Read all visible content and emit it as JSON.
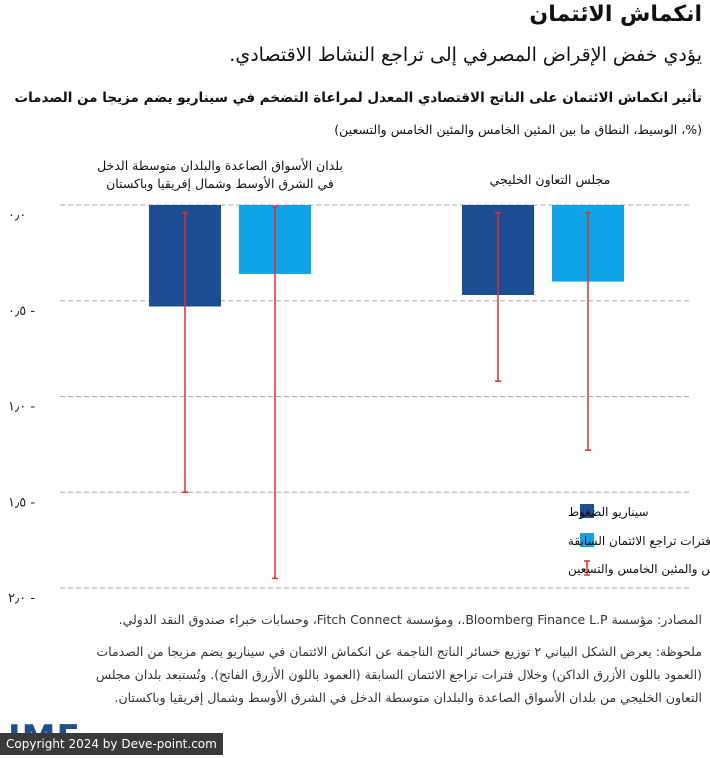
{
  "header": {
    "title": "انكماش الائتمان",
    "subtitle": "يؤدي خفض الإقراض المصرفي إلى تراجع النشاط الاقتصادي."
  },
  "chart_data": {
    "type": "bar",
    "title": "تأثير انكماش الائتمان على الناتج الاقتصادي المعدل لمراعاة التضخم في سيناريو يضم مزيجا من الصدمات",
    "subtitle": "(%، الوسيط، النطاق ما بين المئين الخامس والمئين الخامس والتسعين)",
    "categories": [
      "بلدان الأسواق الصاعدة والبلدان متوسطة الدخل في الشرق الأوسط وشمال إفريقيا وباكستان",
      "مجلس التعاون الخليجي"
    ],
    "series": [
      {
        "name": "سيناريو الضغوط",
        "color": "#1d4e94",
        "values": [
          -0.53,
          -0.47
        ]
      },
      {
        "name": "فترات تراجع الائتمان السابقة",
        "color": "#0fa4e8",
        "values": [
          -0.36,
          -0.4
        ]
      }
    ],
    "ranges": {
      "name": "النطاق ما بين المئين الخامس والمئين الخامس والتسعين",
      "color": "#e0302b",
      "series": [
        {
          "name": "سيناريو الضغوط",
          "low": [
            -1.5,
            -0.92
          ],
          "high": [
            -0.04,
            -0.04
          ]
        },
        {
          "name": "فترات تراجع الائتمان السابقة",
          "low": [
            -1.95,
            -1.28
          ],
          "high": [
            -0.01,
            -0.04
          ]
        }
      ]
    },
    "ylim": [
      -2.0,
      0.0
    ],
    "yticks": [
      0.0,
      -0.5,
      -1.0,
      -1.5,
      -2.0
    ],
    "ytick_labels": [
      "٠٫٠",
      "٠٫٥ -",
      "١٫٠ -",
      "١٫٥ -",
      "٢٫٠ -"
    ],
    "grid": true,
    "legend_position": "bottom-right"
  },
  "footer": {
    "source": "المصادر: مؤسسة Bloomberg Finance L.P.، ومؤسسة Fitch Connect، وحسابات خبراء صندوق النقد الدولي.",
    "note": "ملحوظة: يعرض الشكل البياني ٢ توزيع خسائر الناتج الناجمة عن انكماش الائتمان في سيناريو يضم مزيجا من الصدمات (العمود باللون الأزرق الداكن) وخلال فترات تراجع الائتمان السابقة (العمود باللون الأزرق الفاتح). وتُستبعد بلدان مجلس التعاون الخليجي من بلدان الأسواق الصاعدة والبلدان متوسطة الدخل في الشرق الأوسط وشمال إفريقيا وباكستان.",
    "logo": "IMF",
    "copyright": "Copyright 2024 by Deve-point.com"
  }
}
